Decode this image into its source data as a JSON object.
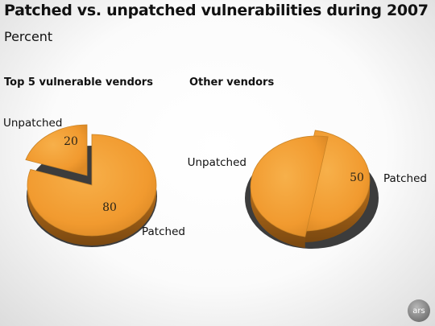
{
  "header": {
    "title": "Patched vs. unpatched vulnerabilities during 2007",
    "subtitle": "Percent"
  },
  "chart_data": [
    {
      "type": "pie",
      "title": "Top 5 vulnerable vendors",
      "unit": "Percent",
      "slices": [
        {
          "label": "Unpatched",
          "value": 20,
          "color": "#f3a43c"
        },
        {
          "label": "Patched",
          "value": 80,
          "color": "#f3a43c"
        }
      ]
    },
    {
      "type": "pie",
      "title": "Other vendors",
      "unit": "Percent",
      "slices": [
        {
          "label": "Unpatched",
          "value": 50,
          "color": "#f3a43c"
        },
        {
          "label": "Patched",
          "value": 50,
          "color": "#f3a43c"
        }
      ]
    }
  ],
  "brand": {
    "logo_text": "ars"
  }
}
